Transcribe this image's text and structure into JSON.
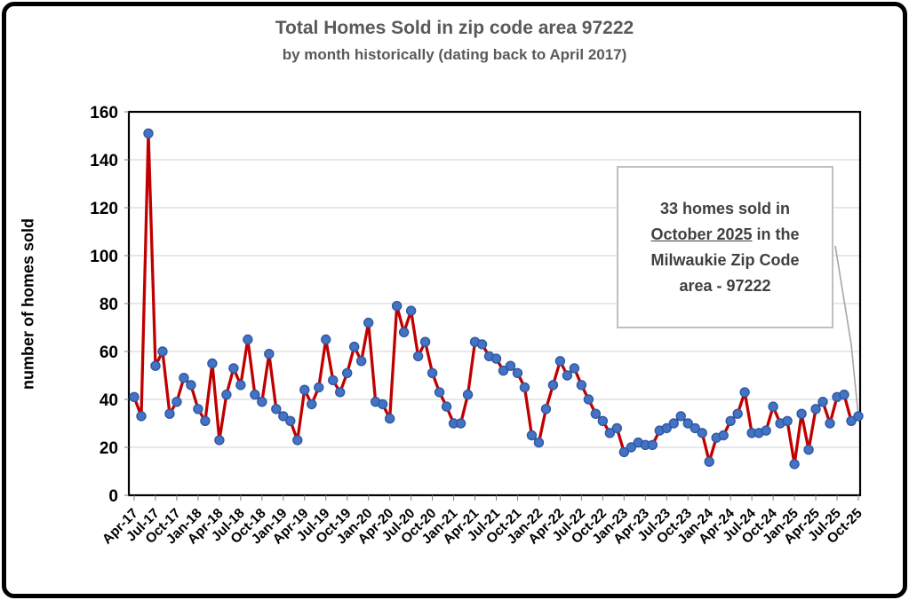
{
  "chart_data": {
    "type": "line",
    "title": "Total Homes Sold in zip code area 97222",
    "subtitle": "by month historically (dating back to April 2017)",
    "ylabel": "number of homes sold",
    "xlabel": "",
    "ylim": [
      0,
      160
    ],
    "y_tick_step": 20,
    "y_ticks": [
      0,
      20,
      40,
      60,
      80,
      100,
      120,
      140,
      160
    ],
    "grid": "horizontal",
    "legend": "none",
    "start_month": "Apr-17",
    "end_month": "Oct-25",
    "x_tick_labels": [
      "Apr-17",
      "Jul-17",
      "Oct-17",
      "Jan-18",
      "Apr-18",
      "Jul-18",
      "Oct-18",
      "Jan-19",
      "Apr-19",
      "Jul-19",
      "Oct-19",
      "Jan-20",
      "Apr-20",
      "Jul-20",
      "Oct-20",
      "Jan-21",
      "Apr-21",
      "Jul-21",
      "Oct-21",
      "Jan-22",
      "Apr-22",
      "Jul-22",
      "Oct-22",
      "Jan-23",
      "Apr-23",
      "Jul-23",
      "Oct-23",
      "Jan-24",
      "Apr-24",
      "Jul-24",
      "Oct-24",
      "Jan-25",
      "Apr-25",
      "Jul-25",
      "Oct-25"
    ],
    "x_tick_every_n_points": 3,
    "values": [
      41,
      33,
      151,
      54,
      60,
      34,
      39,
      49,
      46,
      36,
      31,
      55,
      23,
      42,
      53,
      46,
      65,
      42,
      39,
      59,
      36,
      33,
      31,
      23,
      44,
      38,
      45,
      65,
      48,
      43,
      51,
      62,
      56,
      72,
      39,
      38,
      32,
      79,
      68,
      77,
      58,
      64,
      51,
      43,
      37,
      30,
      30,
      42,
      64,
      63,
      58,
      57,
      52,
      54,
      51,
      45,
      25,
      22,
      36,
      46,
      56,
      50,
      53,
      46,
      40,
      34,
      31,
      26,
      28,
      18,
      20,
      22,
      21,
      21,
      27,
      28,
      30,
      33,
      30,
      28,
      26,
      14,
      24,
      25,
      31,
      34,
      43,
      26,
      26,
      27,
      37,
      30,
      31,
      13,
      34,
      19,
      36,
      39,
      30,
      41,
      42,
      31,
      33
    ],
    "line_color": "#c00000",
    "marker_fill": "#4472c4",
    "marker_stroke": "#2e5aa0",
    "gridline_color": "#d9d9d9",
    "axis_color": "#000000",
    "leader_line_color": "#a6a6a6"
  },
  "annotation": {
    "line1": "33 homes sold in",
    "line2_underlined": "October 2025",
    "line2_rest": " in the",
    "line3": "Milwaukie Zip Code",
    "line4": "area - 97222"
  }
}
